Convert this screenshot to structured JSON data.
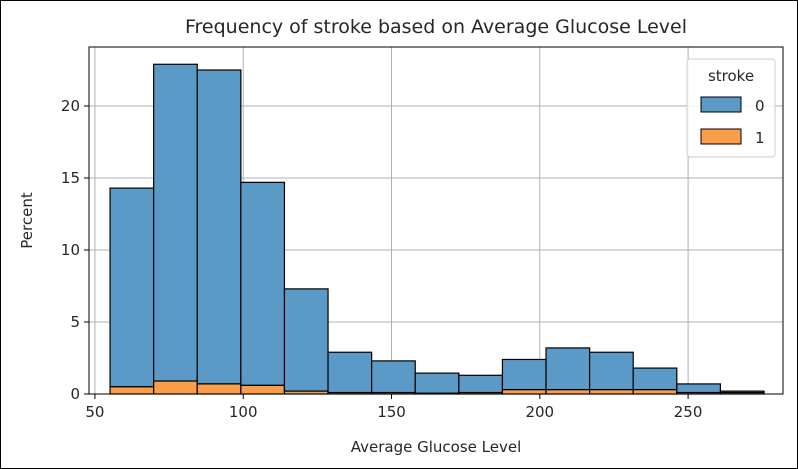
{
  "chart_data": {
    "type": "bar",
    "title": "Frequency of stroke based on Average Glucose Level",
    "xlabel": "Average Glucose Level",
    "ylabel": "Percent",
    "xlim": [
      48,
      282
    ],
    "ylim": [
      0,
      24.1
    ],
    "xticks": [
      50,
      100,
      150,
      200,
      250
    ],
    "yticks": [
      0,
      5,
      10,
      15,
      20
    ],
    "grid": true,
    "stacked": true,
    "bins": [
      [
        55.1,
        69.8
      ],
      [
        69.8,
        84.5
      ],
      [
        84.5,
        99.2
      ],
      [
        99.2,
        113.9
      ],
      [
        113.9,
        128.6
      ],
      [
        128.6,
        143.3
      ],
      [
        143.3,
        158.0
      ],
      [
        158.0,
        172.7
      ],
      [
        172.7,
        187.4
      ],
      [
        187.4,
        202.1
      ],
      [
        202.1,
        216.8
      ],
      [
        216.8,
        231.5
      ],
      [
        231.5,
        246.2
      ],
      [
        246.2,
        260.9
      ],
      [
        260.9,
        275.6
      ]
    ],
    "series": [
      {
        "name": "0",
        "color": "#5b9ac7",
        "values": [
          13.8,
          22.0,
          21.8,
          14.1,
          7.1,
          2.8,
          2.2,
          1.4,
          1.2,
          2.1,
          2.9,
          2.6,
          1.5,
          0.6,
          0.1
        ]
      },
      {
        "name": "1",
        "color": "#fa9e4b",
        "values": [
          0.5,
          0.9,
          0.7,
          0.6,
          0.2,
          0.1,
          0.1,
          0.05,
          0.1,
          0.3,
          0.3,
          0.3,
          0.3,
          0.1,
          0.1
        ]
      }
    ],
    "legend": {
      "title": "stroke",
      "placement": "top-right"
    }
  }
}
